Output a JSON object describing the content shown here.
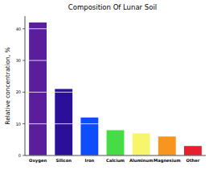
{
  "chart_data": {
    "type": "bar",
    "title": "Composition Of Lunar Soil",
    "y_label": "Relative concentration, %",
    "categories": [
      "Oxygen",
      "Silicon",
      "Iron",
      "Calcium",
      "Aluminum",
      "Magnesium",
      "Other"
    ],
    "values": [
      42,
      21,
      12,
      8,
      7,
      6,
      3
    ],
    "colors": [
      "#5a1d9c",
      "#2c0f98",
      "#0d4dfc",
      "#45dc45",
      "#f6f56c",
      "#f7951f",
      "#e6202c"
    ],
    "ylim": [
      0,
      44
    ],
    "yticks": [
      0,
      10,
      20,
      30,
      40
    ],
    "grid": true
  }
}
